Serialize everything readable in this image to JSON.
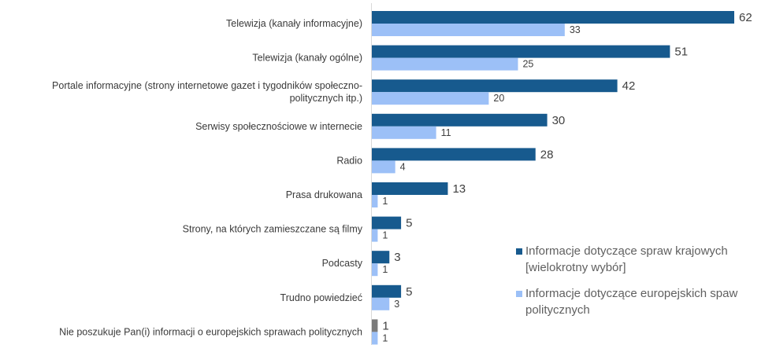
{
  "chart_data": {
    "type": "bar",
    "orientation": "horizontal",
    "categories": [
      [
        "Telewizja (kanały informacyjne)"
      ],
      [
        "Telewizja (kanały ogólne)"
      ],
      [
        "Portale informacyjne (strony internetowe gazet i tygodników społeczno-",
        "politycznych itp.)"
      ],
      [
        "Serwisy społecznościowe w internecie"
      ],
      [
        "Radio"
      ],
      [
        "Prasa drukowana"
      ],
      [
        "Strony, na których zamieszczane są filmy"
      ],
      [
        "Podcasty"
      ],
      [
        "Trudno powiedzieć"
      ],
      [
        "Nie poszukuje Pan(i) informacji o europejskich sprawach politycznych"
      ]
    ],
    "series": [
      {
        "name": "Informacje dotyczące spraw krajowych [wielokrotny wybór]",
        "legend_lines": [
          "Informacje dotyczące spraw krajowych",
          "[wielokrotny wybór]"
        ],
        "color": "#175a8e",
        "values": [
          62,
          51,
          42,
          30,
          28,
          13,
          5,
          3,
          5,
          1
        ],
        "point_colors": [
          null,
          null,
          null,
          null,
          null,
          null,
          null,
          null,
          null,
          "#7a7a7a"
        ]
      },
      {
        "name": "Informacje dotyczące europejskich spaw politycznych",
        "legend_lines": [
          "Informacje dotyczące europejskich spaw",
          "politycznych"
        ],
        "color": "#9cc0f7",
        "values": [
          33,
          25,
          20,
          11,
          4,
          1,
          1,
          1,
          3,
          1
        ],
        "point_colors": [
          null,
          null,
          null,
          null,
          null,
          null,
          null,
          null,
          null,
          null
        ]
      }
    ],
    "xlim": [
      0,
      62
    ],
    "grid": false,
    "legend_position": "bottom-right"
  }
}
